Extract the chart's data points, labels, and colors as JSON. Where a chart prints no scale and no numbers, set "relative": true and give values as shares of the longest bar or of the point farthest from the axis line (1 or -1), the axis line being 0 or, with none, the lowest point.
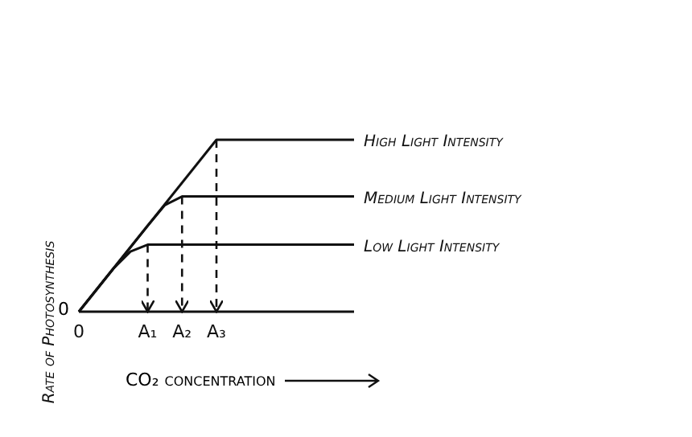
{
  "chart_data": {
    "type": "line",
    "relative": true,
    "xlabel": "CO₂ concentration",
    "ylabel": "Rate of Photosynthesis",
    "categories": [
      "0",
      null,
      null,
      null,
      "A₁",
      null,
      "A₂",
      null,
      "A₃",
      null,
      null,
      null,
      null,
      null,
      null,
      null,
      null
    ],
    "series": [
      {
        "name": "Low Light Intensity",
        "color": "#111111",
        "values": [
          0,
          0.125,
          0.25,
          0.35,
          0.39,
          0.39,
          0.39,
          0.39,
          0.39,
          0.39,
          0.39,
          0.39,
          0.39,
          0.39,
          0.39,
          0.39,
          0.39
        ]
      },
      {
        "name": "Medium Light Intensity",
        "color": "#111111",
        "values": [
          0,
          0.125,
          0.25,
          0.375,
          0.5,
          0.62,
          0.67,
          0.67,
          0.67,
          0.67,
          0.67,
          0.67,
          0.67,
          0.67,
          0.67,
          0.67,
          0.67
        ]
      },
      {
        "name": "High Light Intensity",
        "color": "#111111",
        "values": [
          0,
          0.125,
          0.25,
          0.375,
          0.5,
          0.625,
          0.75,
          0.875,
          1,
          1,
          1,
          1,
          1,
          1,
          1,
          1,
          1
        ]
      }
    ],
    "ref_lines": [
      {
        "axis": "x",
        "value": "A₁",
        "line_style": "dashed",
        "color": "#111111"
      },
      {
        "axis": "x",
        "value": "A₂",
        "line_style": "dashed",
        "color": "#111111"
      },
      {
        "axis": "x",
        "value": "A₃",
        "line_style": "dashed",
        "color": "#111111"
      }
    ],
    "annotations": [
      "0"
    ],
    "legend": false,
    "marker": "none",
    "line_style": "solid",
    "grid": false
  }
}
